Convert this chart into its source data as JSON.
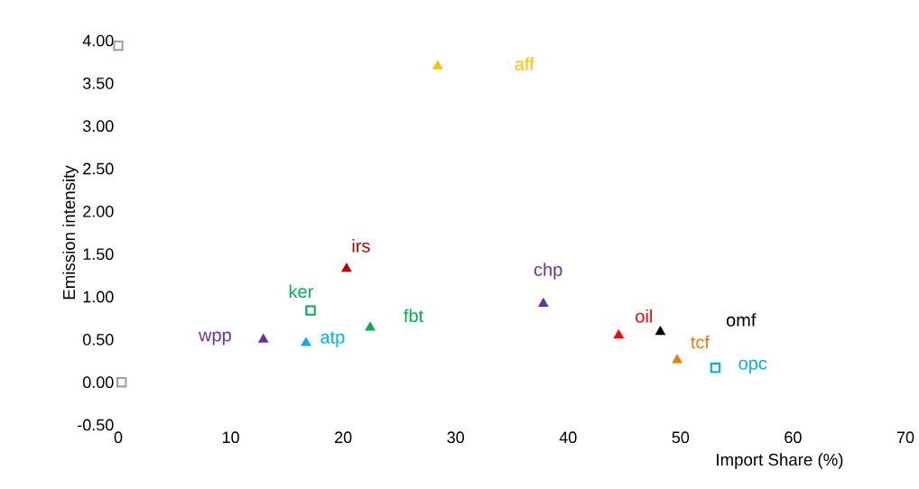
{
  "chart_data": {
    "type": "scatter",
    "xlabel": "Import Share (%)",
    "ylabel": "Emission intensity",
    "xlim": [
      0,
      70
    ],
    "ylim": [
      -0.5,
      4.0
    ],
    "xticks": [
      0,
      10,
      20,
      30,
      40,
      50,
      60,
      70
    ],
    "yticks": [
      {
        "value": -0.5,
        "label": "-0.50"
      },
      {
        "value": 0,
        "label": "0.00"
      },
      {
        "value": 0.5,
        "label": "0.50"
      },
      {
        "value": 1,
        "label": "1.00"
      },
      {
        "value": 1.5,
        "label": "1.50"
      },
      {
        "value": 2,
        "label": "2.00"
      },
      {
        "value": 2.5,
        "label": "2.50"
      },
      {
        "value": 3,
        "label": "3.00"
      },
      {
        "value": 3.5,
        "label": "3.50"
      },
      {
        "value": 4,
        "label": "4.00"
      }
    ],
    "grid": false,
    "legend": false,
    "marker": "triangle",
    "series": [
      {
        "name": "aff",
        "color": "#ffc000",
        "x": [
          28.4
        ],
        "values": [
          3.7
        ]
      },
      {
        "name": "irs",
        "color": "#c00000",
        "x": [
          20.3
        ],
        "values": [
          1.33
        ]
      },
      {
        "name": "ker",
        "color": "#00b050",
        "x": [
          17.1
        ],
        "values": [
          0.84
        ],
        "marker": "square"
      },
      {
        "name": "wpp",
        "color": "#7030a0",
        "x": [
          12.9
        ],
        "values": [
          0.5
        ]
      },
      {
        "name": "atp",
        "color": "#00b0f0",
        "x": [
          16.7
        ],
        "values": [
          0.46
        ]
      },
      {
        "name": "fbt",
        "color": "#00b050",
        "x": [
          22.4
        ],
        "values": [
          0.64
        ]
      },
      {
        "name": "chp",
        "color": "#7030a0",
        "x": [
          37.8
        ],
        "values": [
          0.92
        ]
      },
      {
        "name": "oil",
        "color": "#ff0000",
        "x": [
          44.5
        ],
        "values": [
          0.55
        ]
      },
      {
        "name": "omf",
        "color": "#000000",
        "x": [
          48.2
        ],
        "values": [
          0.59
        ]
      },
      {
        "name": "tcf",
        "color": "#e97c0c",
        "x": [
          49.7
        ],
        "values": [
          0.26
        ]
      },
      {
        "name": "opc",
        "color": "#00b0f0",
        "x": [
          53.1
        ],
        "values": [
          0.17
        ],
        "marker": "square"
      },
      {
        "color": "#a0a0a0",
        "x": [
          0,
          0.3
        ],
        "values": [
          3.94,
          0.0
        ],
        "marker": "square"
      }
    ]
  }
}
